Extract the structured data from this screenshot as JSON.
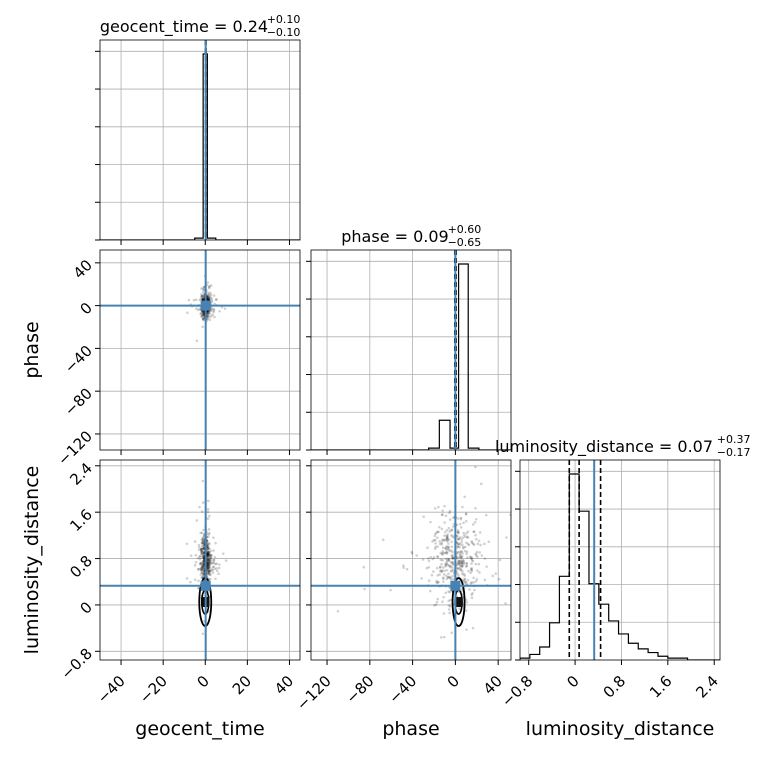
{
  "chart_data": {
    "type": "corner",
    "parameters": [
      "geocent_time",
      "phase",
      "luminosity_distance"
    ],
    "truths": {
      "geocent_time": 0.2,
      "phase": 0.0,
      "luminosity_distance": 0.33
    },
    "colors": {
      "truth": "#4682b4",
      "hist": "#000000",
      "grid": "#b0b0b0",
      "points": "#000000"
    },
    "ticks": {
      "geocent_time": [
        -40,
        -20,
        0,
        20,
        40
      ],
      "phase": [
        -120,
        -80,
        -40,
        0,
        40
      ],
      "luminosity_distance": [
        -0.8,
        0.0,
        0.8,
        1.6,
        2.4
      ]
    },
    "ranges": {
      "geocent_time": [
        -50,
        45
      ],
      "phase": [
        -135,
        52
      ],
      "luminosity_distance": [
        -0.95,
        2.5
      ]
    },
    "titles": [
      {
        "name": "geocent_time",
        "text": "geocent_time = 0.24",
        "upper": "+0.10",
        "lower": "−0.10"
      },
      {
        "name": "phase",
        "text": "phase = 0.09",
        "upper": "+0.60",
        "lower": "−0.65"
      },
      {
        "name": "luminosity_distance",
        "text": "luminosity_distance = 0.07",
        "upper": "+0.37",
        "lower": "−0.17"
      }
    ],
    "labels": {
      "x": [
        "geocent_time",
        "phase",
        "luminosity_distance"
      ],
      "y": [
        "phase",
        "luminosity_distance"
      ]
    },
    "marginals": {
      "geocent_time": {
        "bins": [
          -50,
          -45,
          -40,
          -35,
          -30,
          -25,
          -20,
          -15,
          -10,
          -5,
          -3,
          -1,
          1,
          3,
          5,
          10,
          15,
          20,
          25,
          30,
          35,
          40,
          45
        ],
        "counts": [
          0,
          0,
          0,
          0,
          0,
          0,
          0,
          0,
          0,
          0.01,
          0.01,
          1.0,
          0.01,
          0.01,
          0,
          0,
          0,
          0,
          0,
          0,
          0,
          0
        ],
        "quantiles": [
          0.14,
          0.24,
          0.34
        ]
      },
      "phase": {
        "bins": [
          -135,
          -125,
          -115,
          -105,
          -95,
          -85,
          -75,
          -65,
          -55,
          -45,
          -35,
          -25,
          -15,
          -5,
          3,
          12,
          22,
          32,
          42,
          52
        ],
        "counts": [
          0,
          0,
          0,
          0,
          0,
          0,
          0,
          0,
          0,
          0,
          0,
          0.01,
          0.16,
          0.01,
          1.0,
          0.01,
          0,
          0,
          0
        ],
        "quantiles": [
          -0.56,
          0.09,
          0.69
        ]
      },
      "luminosity_distance": {
        "bins": [
          -0.95,
          -0.78,
          -0.61,
          -0.44,
          -0.27,
          -0.1,
          0.07,
          0.24,
          0.41,
          0.58,
          0.75,
          0.92,
          1.09,
          1.26,
          1.43,
          1.6,
          1.77,
          1.94,
          2.11,
          2.28,
          2.5
        ],
        "counts": [
          0.01,
          0.03,
          0.07,
          0.2,
          0.45,
          1.0,
          0.8,
          0.41,
          0.3,
          0.21,
          0.14,
          0.09,
          0.06,
          0.04,
          0.02,
          0.01,
          0.01,
          0,
          0,
          0
        ],
        "quantiles": [
          -0.1,
          0.07,
          0.44
        ]
      }
    }
  }
}
